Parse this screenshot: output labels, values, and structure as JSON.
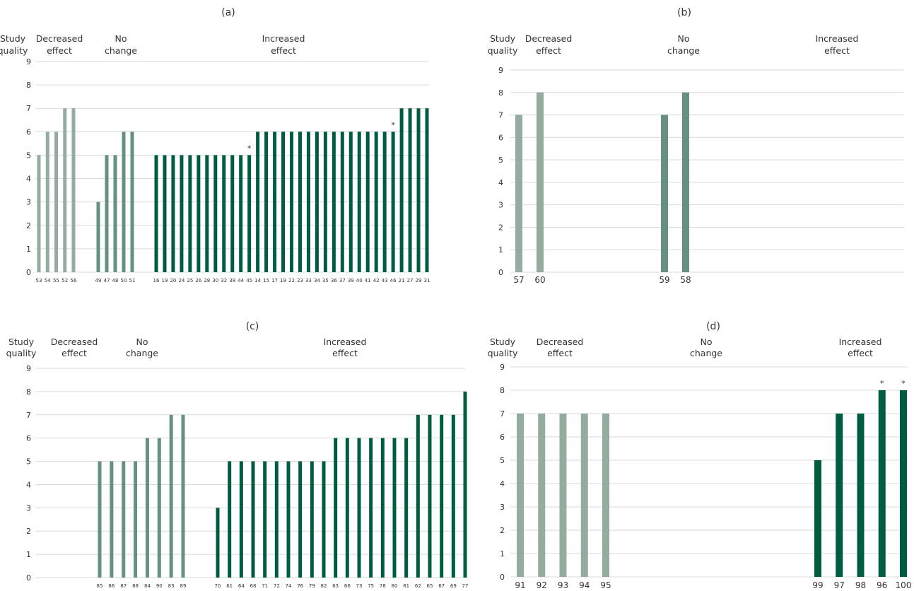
{
  "colors": {
    "decreased": "#94ab9f",
    "no_change": "#66907f",
    "increased": "#005c41",
    "grid": "#d9d9d9",
    "text": "#333333"
  },
  "chart_data": [
    {
      "type": "bar",
      "panel_label": "(a)",
      "ylabel": "Study quality",
      "ylim": [
        0,
        9
      ],
      "yticks": [
        "0",
        "1",
        "2",
        "3",
        "4",
        "5",
        "6",
        "7",
        "8",
        "9"
      ],
      "grid": true,
      "groups": [
        {
          "name": "Decreased effect",
          "color_key": "decreased",
          "categories": [
            "53",
            "54",
            "55",
            "52",
            "56"
          ],
          "values": [
            5,
            6,
            6,
            7,
            7
          ],
          "stars": []
        },
        {
          "name": "No change",
          "color_key": "no_change",
          "categories": [
            "49",
            "47",
            "48",
            "50",
            "51"
          ],
          "values": [
            3,
            5,
            5,
            6,
            6
          ],
          "stars": []
        },
        {
          "name": "Increased effect",
          "color_key": "increased",
          "categories": [
            "16",
            "19",
            "20",
            "24",
            "25",
            "26",
            "28",
            "30",
            "32",
            "38",
            "44",
            "45",
            "14",
            "15",
            "17",
            "19",
            "22",
            "23",
            "33",
            "34",
            "35",
            "36",
            "37",
            "39",
            "40",
            "41",
            "42",
            "43",
            "46",
            "21",
            "27",
            "29",
            "31"
          ],
          "values": [
            5,
            5,
            5,
            5,
            5,
            5,
            5,
            5,
            5,
            5,
            5,
            5,
            6,
            6,
            6,
            6,
            6,
            6,
            6,
            6,
            6,
            6,
            6,
            6,
            6,
            6,
            6,
            6,
            6,
            7,
            7,
            7,
            7
          ],
          "stars": [
            "45",
            "46"
          ]
        }
      ]
    },
    {
      "type": "bar",
      "panel_label": "(b)",
      "ylabel": "Study quality",
      "ylim": [
        0,
        9
      ],
      "yticks": [
        "0",
        "1",
        "2",
        "3",
        "4",
        "5",
        "6",
        "7",
        "8",
        "9"
      ],
      "grid": true,
      "groups": [
        {
          "name": "Decreased effect",
          "color_key": "decreased",
          "categories": [
            "57",
            "60"
          ],
          "values": [
            7,
            8
          ],
          "stars": []
        },
        {
          "name": "No change",
          "color_key": "no_change",
          "categories": [
            "59",
            "58"
          ],
          "values": [
            7,
            8
          ],
          "stars": []
        },
        {
          "name": "Increased effect",
          "color_key": "increased",
          "categories": [],
          "values": [],
          "stars": []
        }
      ]
    },
    {
      "type": "bar",
      "panel_label": "(c)",
      "ylabel": "Study quality",
      "ylim": [
        0,
        9
      ],
      "yticks": [
        "0",
        "1",
        "2",
        "3",
        "4",
        "5",
        "6",
        "7",
        "8",
        "9"
      ],
      "grid": true,
      "groups": [
        {
          "name": "Decreased effect",
          "color_key": "decreased",
          "categories": [],
          "values": [],
          "stars": []
        },
        {
          "name": "No change",
          "color_key": "no_change",
          "categories": [
            "85",
            "86",
            "87",
            "88",
            "84",
            "90",
            "83",
            "89"
          ],
          "values": [
            5,
            5,
            5,
            5,
            6,
            6,
            7,
            7
          ],
          "stars": []
        },
        {
          "name": "Increased effect",
          "color_key": "increased",
          "categories": [
            "70",
            "61",
            "64",
            "68",
            "71",
            "72",
            "74",
            "76",
            "79",
            "82",
            "63",
            "66",
            "73",
            "75",
            "78",
            "80",
            "81",
            "62",
            "65",
            "67",
            "69",
            "77"
          ],
          "values": [
            3,
            5,
            5,
            5,
            5,
            5,
            5,
            5,
            5,
            5,
            6,
            6,
            6,
            6,
            6,
            6,
            6,
            7,
            7,
            7,
            7,
            8
          ],
          "stars": []
        }
      ]
    },
    {
      "type": "bar",
      "panel_label": "(d)",
      "ylabel": "Study quality",
      "ylim": [
        0,
        9
      ],
      "yticks": [
        "0",
        "1",
        "2",
        "3",
        "4",
        "5",
        "6",
        "7",
        "8",
        "9"
      ],
      "grid": true,
      "groups": [
        {
          "name": "Decreased effect",
          "color_key": "decreased",
          "categories": [
            "91",
            "92",
            "93",
            "94",
            "95"
          ],
          "values": [
            7,
            7,
            7,
            7,
            7
          ],
          "stars": []
        },
        {
          "name": "No change",
          "color_key": "no_change",
          "categories": [],
          "values": [],
          "stars": []
        },
        {
          "name": "Increased effect",
          "color_key": "increased",
          "categories": [
            "99",
            "97",
            "98",
            "96",
            "100"
          ],
          "values": [
            5,
            7,
            7,
            8,
            8
          ],
          "stars": [
            "96",
            "100"
          ]
        }
      ]
    }
  ]
}
